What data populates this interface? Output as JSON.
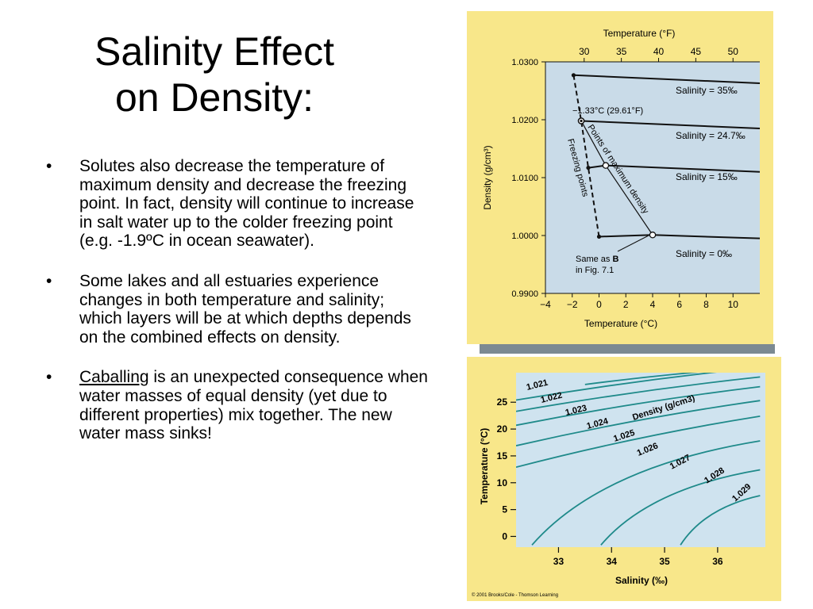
{
  "slide": {
    "title_line1": "Salinity Effect",
    "title_line2": "on Density:",
    "bullets": [
      {
        "marker": "•",
        "text": "Solutes also decrease the temperature of maximum density and decrease the freezing point.  In fact, density will continue to increase in salt water up to the colder freezing point (e.g. -1.9ºC in ocean seawater)."
      },
      {
        "marker": "•",
        "text": "Some lakes and all estuaries experience changes in both temperature and salinity; which layers will be at which depths depends on the combined effects on density."
      },
      {
        "marker": "•",
        "link_text": "Caballing",
        "text": " is an unexpected consequence when water masses of equal density (yet due to different properties) mix together.  The new water mass sinks!"
      }
    ]
  },
  "chart_data": [
    {
      "type": "line",
      "title": "",
      "top_axis_label": "Temperature (°F)",
      "top_ticks": [
        "30",
        "35",
        "40",
        "45",
        "50"
      ],
      "xlabel": "Temperature (°C)",
      "ylabel": "Density (g/cm³)",
      "xlim": [
        -4,
        12
      ],
      "ylim": [
        0.99,
        1.03
      ],
      "x_ticks": [
        "−4",
        "−2",
        "0",
        "2",
        "4",
        "6",
        "8",
        "10"
      ],
      "y_ticks": [
        "1.0300",
        "1.0200",
        "1.0100",
        "1.0000",
        "0.9900"
      ],
      "series": [
        {
          "name": "Salinity = 35‰",
          "x": [
            -1.9,
            12
          ],
          "y": [
            1.0277,
            1.0263
          ]
        },
        {
          "name": "Salinity = 24.7‰",
          "x": [
            -1.33,
            12
          ],
          "y": [
            1.0198,
            1.0185
          ]
        },
        {
          "name": "Salinity = 15‰",
          "x": [
            -0.8,
            0.5,
            12
          ],
          "y": [
            1.0117,
            1.0121,
            1.011
          ]
        },
        {
          "name": "Salinity = 0‰",
          "x": [
            0,
            4,
            12
          ],
          "y": [
            0.9998,
            1.0001,
            0.9995
          ]
        }
      ],
      "annotations": {
        "point_label": "−1.33°C (29.61°F)",
        "max_density_label": "Points of maximum density",
        "freezing_label": "Freezing points",
        "same_as_line1": "Same as ",
        "same_as_bold": "B",
        "same_as_line2": "in Fig. 7.1"
      },
      "colors": {
        "background": "#f8e78a",
        "plot": "#c9dbe8",
        "curve": "#111111"
      }
    },
    {
      "type": "line",
      "title": "",
      "xlabel": "Salinity (‰)",
      "ylabel": "Temperature (°C)",
      "xlim": [
        32.2,
        36.9
      ],
      "ylim": [
        -2,
        30.5
      ],
      "x_ticks": [
        "33",
        "34",
        "35",
        "36"
      ],
      "y_ticks": [
        "25",
        "20",
        "15",
        "10",
        "5",
        "0"
      ],
      "series_label": "Density (g/cm3)",
      "series": [
        {
          "name": "1.021",
          "x": [
            33.5,
            36.2
          ],
          "y": [
            28.3,
            31.1
          ]
        },
        {
          "name": "1.022",
          "x": [
            32.2,
            36.8
          ],
          "y": [
            25.4,
            31.5
          ]
        },
        {
          "name": "1.023",
          "x": [
            32.2,
            36.8
          ],
          "y": [
            23.3,
            29.7
          ]
        },
        {
          "name": "1.024",
          "x": [
            32.2,
            36.8
          ],
          "y": [
            20.7,
            27.9
          ]
        },
        {
          "name": "1.025",
          "x": [
            32.2,
            36.8
          ],
          "y": [
            16.9,
            25.3
          ]
        },
        {
          "name": "1.026",
          "x": [
            32.2,
            36.8
          ],
          "y": [
            12.9,
            22.4
          ]
        },
        {
          "name": "1.027",
          "x": [
            32.5,
            36.8
          ],
          "y": [
            -1.6,
            17.8
          ]
        },
        {
          "name": "1.028",
          "x": [
            33.8,
            36.8
          ],
          "y": [
            -1.6,
            12.4
          ]
        },
        {
          "name": "1.029",
          "x": [
            35.3,
            36.8
          ],
          "y": [
            -1.6,
            7.6
          ]
        }
      ],
      "copyright": "© 2001 Brooks/Cole - Thomson Learning",
      "colors": {
        "background": "#f8e78a",
        "plot": "#cfe3ef",
        "curve": "#1f8a8a"
      }
    }
  ]
}
